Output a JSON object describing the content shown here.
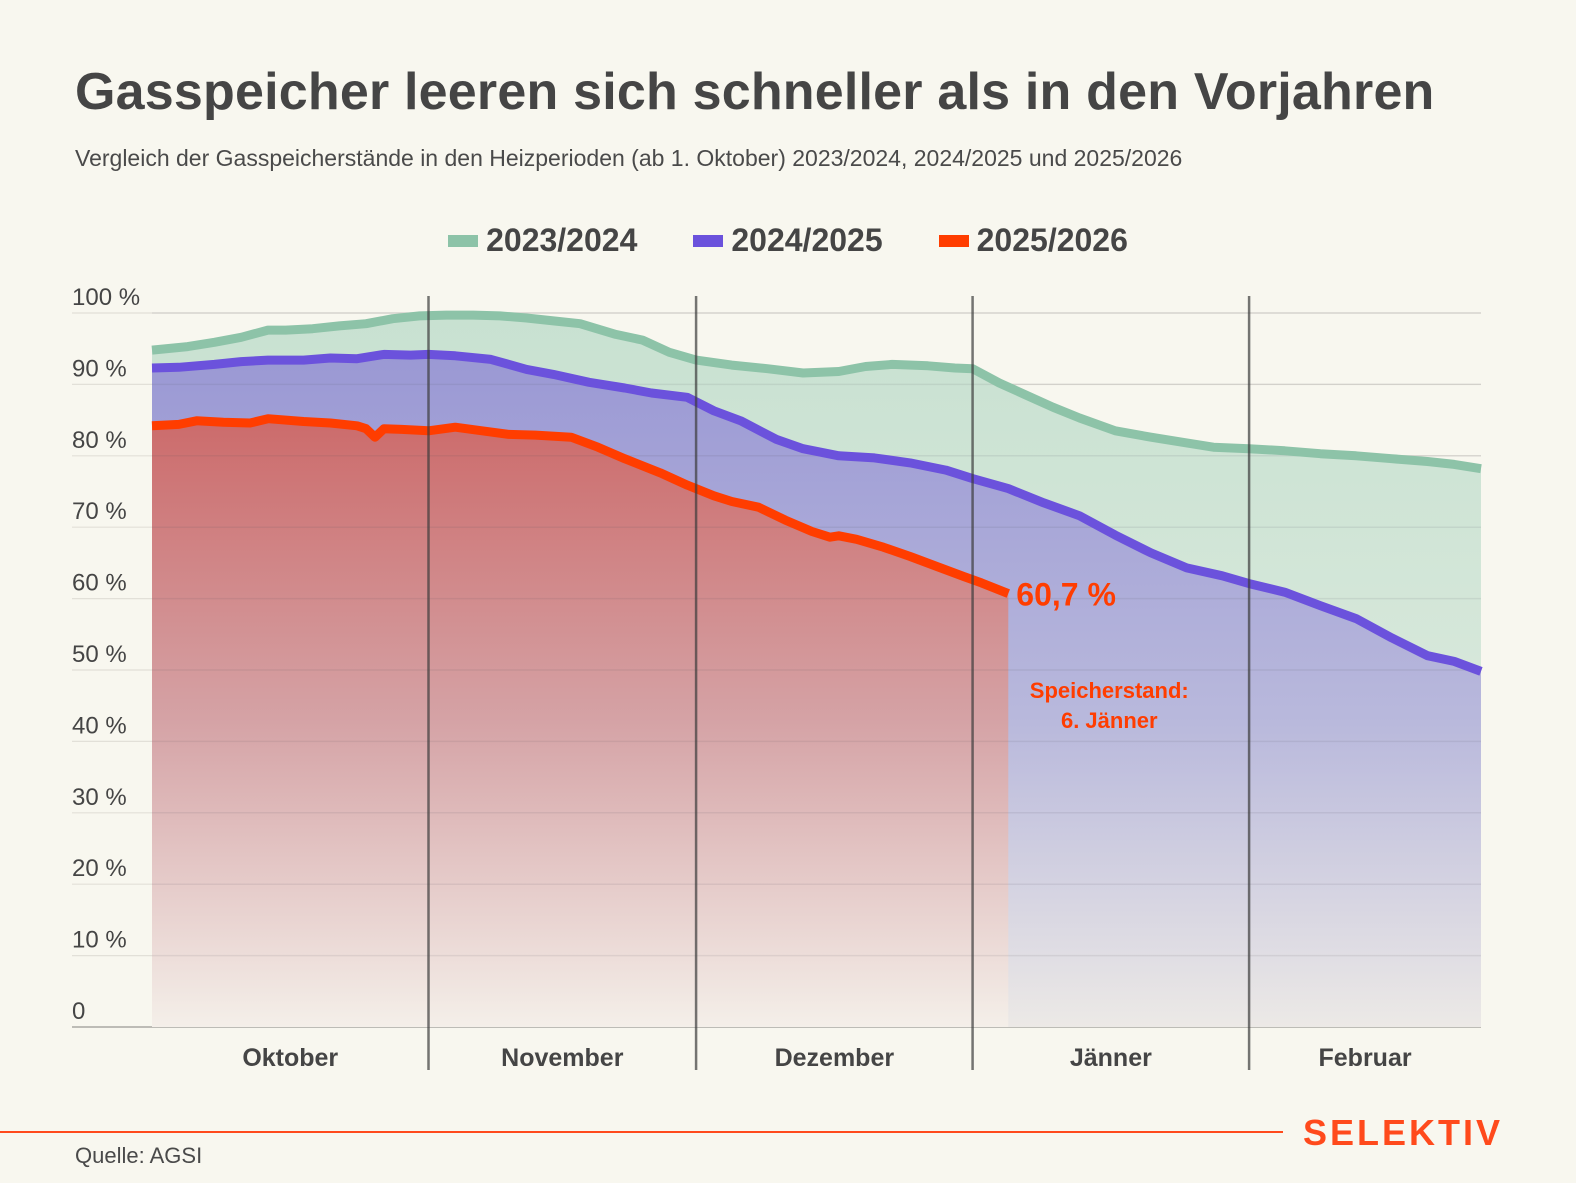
{
  "header": {
    "title": "Gasspeicher leeren sich schneller als in den Vorjahren",
    "subtitle": "Vergleich der Gasspeicherstände in den Heizperioden (ab 1. Oktober) 2023/2024, 2024/2025 und 2025/2026"
  },
  "footer": {
    "source": "Quelle: AGSI",
    "brand": "SELEKTIV"
  },
  "colors": {
    "accent": "#ff4a1c",
    "background": "#f8f7ef",
    "text": "#454545"
  },
  "chart_data": {
    "type": "area",
    "title": "Gasspeicher leeren sich schneller als in den Vorjahren",
    "subtitle": "Vergleich der Gasspeicherstände in den Heizperioden (ab 1. Oktober) 2023/2024, 2024/2025 und 2025/2026",
    "xlabel": "",
    "ylabel": "",
    "x_unit": "days since 1 October",
    "xlim": [
      0,
      149
    ],
    "ylim": [
      0,
      100
    ],
    "grid": true,
    "legend_position": "top-center",
    "y_ticks": [
      0,
      10,
      20,
      30,
      40,
      50,
      60,
      70,
      80,
      90,
      100
    ],
    "y_tick_labels": [
      "0",
      "10 %",
      "20 %",
      "30 %",
      "40 %",
      "50 %",
      "60 %",
      "70 %",
      "80 %",
      "90 %",
      "100 %"
    ],
    "month_boundaries": [
      31,
      61,
      92,
      123
    ],
    "month_labels": [
      {
        "label": "Oktober",
        "start": 0,
        "end": 31
      },
      {
        "label": "November",
        "start": 31,
        "end": 61
      },
      {
        "label": "Dezember",
        "start": 61,
        "end": 92
      },
      {
        "label": "Jänner",
        "start": 92,
        "end": 123
      },
      {
        "label": "Februar",
        "start": 123,
        "end": 149
      }
    ],
    "series": [
      {
        "name": "2023/2024",
        "color": "#8dc3a8",
        "fill": "#c8e1d1",
        "x": [
          0,
          4,
          7,
          10,
          13,
          15,
          18,
          21,
          24,
          27,
          30,
          33,
          36,
          39,
          42,
          45,
          48,
          52,
          55,
          58,
          61,
          65,
          69,
          73,
          77,
          80,
          83,
          87,
          90,
          92,
          95,
          98,
          101,
          104,
          108,
          112,
          116,
          119,
          123,
          127,
          131,
          135,
          139,
          143,
          146,
          149
        ],
        "values": [
          94.8,
          95.3,
          95.9,
          96.6,
          97.6,
          97.6,
          97.8,
          98.2,
          98.5,
          99.2,
          99.6,
          99.7,
          99.7,
          99.6,
          99.3,
          98.9,
          98.5,
          97.0,
          96.2,
          94.5,
          93.4,
          92.7,
          92.2,
          91.6,
          91.8,
          92.5,
          92.8,
          92.6,
          92.3,
          92.2,
          90.2,
          88.5,
          86.8,
          85.3,
          83.5,
          82.6,
          81.8,
          81.2,
          81.0,
          80.7,
          80.3,
          80.0,
          79.6,
          79.2,
          78.8,
          78.2
        ]
      },
      {
        "name": "2024/2025",
        "color": "#6b52dc",
        "fill": "#9c9bd3",
        "x": [
          0,
          3,
          7,
          10,
          13,
          17,
          20,
          23,
          26,
          29,
          31,
          34,
          38,
          42,
          45,
          49,
          53,
          56,
          60,
          63,
          66,
          70,
          73,
          77,
          81,
          85,
          89,
          92,
          96,
          100,
          104,
          108,
          112,
          116,
          120,
          123,
          127,
          131,
          135,
          139,
          143,
          146,
          149
        ],
        "values": [
          92.3,
          92.4,
          92.8,
          93.2,
          93.4,
          93.4,
          93.7,
          93.6,
          94.2,
          94.1,
          94.2,
          94.0,
          93.5,
          92.1,
          91.4,
          90.3,
          89.5,
          88.8,
          88.2,
          86.3,
          84.9,
          82.3,
          81.0,
          80.0,
          79.7,
          79.0,
          78.0,
          76.8,
          75.4,
          73.4,
          71.6,
          68.9,
          66.4,
          64.3,
          63.2,
          62.1,
          60.9,
          59.0,
          57.2,
          54.5,
          52.0,
          51.2,
          49.8
        ]
      },
      {
        "name": "2025/2026",
        "color": "#ff3d00",
        "fill": "#cd6a6a",
        "x": [
          0,
          3,
          5,
          8,
          11,
          13,
          17,
          20,
          23,
          26,
          24,
          25,
          28,
          31,
          34,
          37,
          40,
          43,
          47,
          50,
          53,
          57,
          60,
          63,
          65,
          68,
          71,
          74,
          76,
          77,
          79,
          82,
          85,
          88,
          91,
          93,
          96
        ],
        "values": [
          84.2,
          84.4,
          84.9,
          84.7,
          84.6,
          85.2,
          84.8,
          84.6,
          84.2,
          83.8,
          83.8,
          82.6,
          83.7,
          83.5,
          84.0,
          83.5,
          83.0,
          82.9,
          82.6,
          81.2,
          79.6,
          77.6,
          75.9,
          74.4,
          73.6,
          72.8,
          71.0,
          69.4,
          68.6,
          68.8,
          68.3,
          67.2,
          65.9,
          64.5,
          63.1,
          62.2,
          60.7
        ]
      }
    ],
    "annotations": [
      {
        "text": "60,7 %",
        "series": "2025/2026",
        "x": 96,
        "y": 60.7
      },
      {
        "text": "Speicherstand:",
        "series": "2025/2026"
      },
      {
        "text": "6. Jänner",
        "series": "2025/2026"
      }
    ]
  }
}
